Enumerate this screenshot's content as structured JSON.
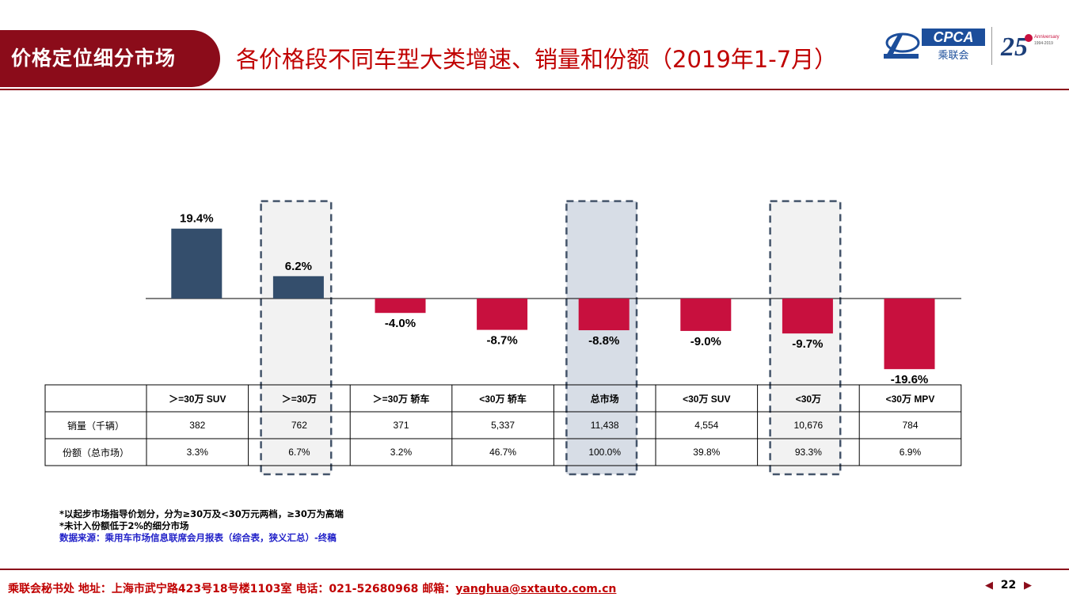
{
  "header": {
    "section_label": "价格定位细分市场",
    "title": "各价格段不同车型大类增速、销量和份额（2019年1-7月）"
  },
  "logos": {
    "cpca_text": "CPCA",
    "cpca_sub": "乘联会",
    "anniv_text": "Anniversary",
    "anniv_years": "1994-2019"
  },
  "colors": {
    "positive": "#344e6c",
    "negative": "#c8103e",
    "brand": "#8b0c1a",
    "highlight_light": "#f2f2f2",
    "highlight_total": "#d7dde6"
  },
  "chart_data": {
    "type": "bar",
    "categories": [
      ">=30万 SUV",
      ">=30万",
      ">=30万 轿车",
      "<30万 轿车",
      "总市场",
      "<30万 SUV",
      "<30万",
      "<30万 MPV"
    ],
    "category_labels": [
      "＞=30万 SUV",
      "＞=30万",
      "＞=30万 轿车",
      "<30万 轿车",
      "总市场",
      "<30万 SUV",
      "<30万",
      "<30万 MPV"
    ],
    "values": [
      19.4,
      6.2,
      -4.0,
      -8.7,
      -8.8,
      -9.0,
      -9.7,
      -19.6
    ],
    "value_labels": [
      "19.4%",
      "6.2%",
      "-4.0%",
      "-8.7%",
      "-8.8%",
      "-9.0%",
      "-9.7%",
      "-19.6%"
    ],
    "unit": "%",
    "highlighted_categories": [
      1,
      4,
      6
    ],
    "ylim": [
      -20,
      20
    ],
    "table_rows": [
      {
        "label": "销量（千辆）",
        "values": [
          "382",
          "762",
          "371",
          "5,337",
          "11,438",
          "4,554",
          "10,676",
          "784"
        ]
      },
      {
        "label": "份额（总市场）",
        "values": [
          "3.3%",
          "6.7%",
          "3.2%",
          "46.7%",
          "100.0%",
          "39.8%",
          "93.3%",
          "6.9%"
        ]
      }
    ]
  },
  "notes": {
    "line1": "*以起步市场指导价划分，分为≥30万及<30万元两档，≥30万为高端",
    "line2": "*未计入份额低于2%的细分市场",
    "source": "数据来源：乘用车市场信息联席会月报表（综合表，狭义汇总）-终稿"
  },
  "footer": {
    "org_info": "乘联会秘书处   地址：上海市武宁路423号18号楼1103室  电话：021-52680968   邮箱：",
    "email": "yanghua@sxtauto.com.cn",
    "page_number": "22"
  }
}
